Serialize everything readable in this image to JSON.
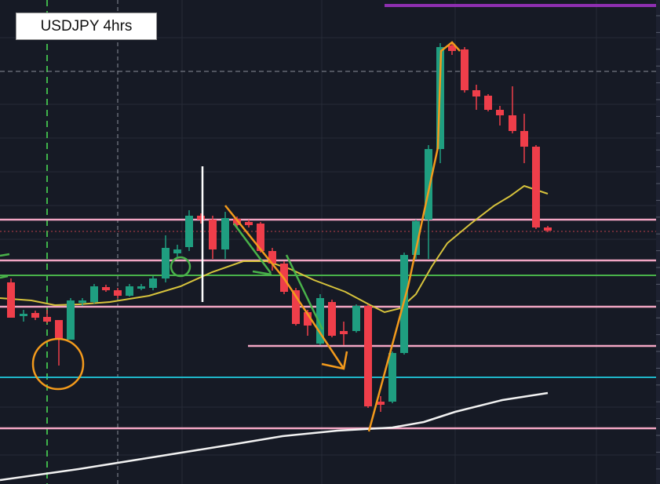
{
  "title": "USDJPY 4hrs"
}
